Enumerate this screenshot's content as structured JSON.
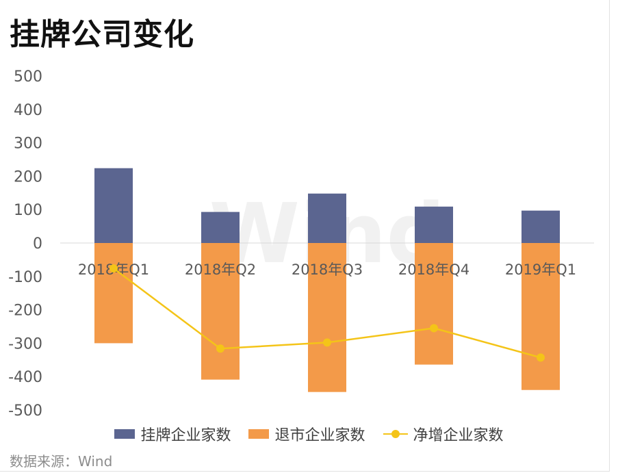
{
  "title": "挂牌公司变化",
  "source": "数据来源：Wind",
  "watermark": "Wind",
  "colors": {
    "listed": "#5b6590",
    "delisted": "#f39a49",
    "net": "#f4c418",
    "axis_text": "#595959",
    "zero_line": "#d9d9d9"
  },
  "chart_data": {
    "type": "bar",
    "categories": [
      "2018年Q1",
      "2018年Q2",
      "2018年Q3",
      "2018年Q4",
      "2019年Q1"
    ],
    "ylim": [
      -500,
      500
    ],
    "yticks": [
      500,
      400,
      300,
      200,
      100,
      0,
      -100,
      -200,
      -300,
      -400,
      -500
    ],
    "grid": false,
    "legend_position": "bottom",
    "series": [
      {
        "name": "挂牌企业家数",
        "type": "bar",
        "values": [
          224,
          93,
          148,
          109,
          97
        ]
      },
      {
        "name": "退市企业家数",
        "type": "bar",
        "values": [
          -300,
          -409,
          -446,
          -364,
          -440
        ]
      },
      {
        "name": "净增企业家数",
        "type": "line",
        "values": [
          -76,
          -316,
          -298,
          -255,
          -343
        ]
      }
    ]
  }
}
